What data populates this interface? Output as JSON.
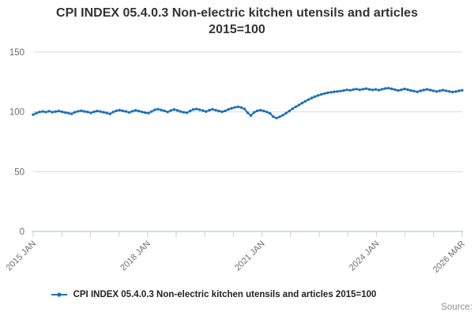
{
  "header": {
    "title_line1": "CPI INDEX 05.4.0.3 Non-electric kitchen utensils and articles",
    "title_line2": "2015=100"
  },
  "legend": {
    "label": "CPI INDEX 05.4.0.3 Non-electric kitchen utensils and articles 2015=100",
    "marker": "line-with-dot-icon"
  },
  "footer": {
    "source_label": "Source:"
  },
  "colors": {
    "series": "#1d70b8",
    "gridline": "#d9d9d9",
    "axis": "#c4cfda",
    "tick_label": "#6e6e6e",
    "title": "#333333",
    "legend_text": "#222222",
    "source_text": "#8e8e8e"
  },
  "chart_data": {
    "type": "line",
    "title": "CPI INDEX 05.4.0.3 Non-electric kitchen utensils and articles 2015=100",
    "xlabel": "",
    "ylabel": "",
    "ylim": [
      0,
      150
    ],
    "y_ticks": [
      0,
      50,
      100,
      150
    ],
    "grid": "horizontal",
    "legend_position": "bottom",
    "x_minor_tick_count": 16,
    "x_tick_labels": [
      {
        "pos": 0,
        "label": "2015 JAN"
      },
      {
        "pos": 4,
        "label": "2018 JAN"
      },
      {
        "pos": 8,
        "label": "2021 JAN"
      },
      {
        "pos": 12,
        "label": "2024 JAN"
      },
      {
        "pos": 15,
        "label": "2026 MAR"
      }
    ],
    "x_start": "2015 JAN",
    "x_end": "2026 MAR",
    "frequency": "monthly",
    "series": [
      {
        "name": "CPI INDEX 05.4.0.3 Non-electric kitchen utensils and articles 2015=100",
        "values": [
          97.7,
          99.0,
          100.0,
          100.4,
          99.9,
          100.6,
          99.8,
          100.3,
          100.7,
          100.1,
          99.5,
          99.0,
          98.4,
          99.7,
          100.5,
          101.0,
          100.4,
          100.0,
          99.2,
          100.1,
          100.8,
          100.3,
          99.7,
          99.1,
          98.3,
          99.9,
          101.0,
          101.5,
          100.9,
          100.4,
          99.6,
          100.6,
          101.3,
          100.7,
          100.0,
          99.4,
          99.0,
          100.4,
          101.8,
          102.3,
          101.6,
          100.9,
          99.9,
          101.2,
          102.0,
          101.3,
          100.4,
          99.7,
          99.3,
          100.8,
          102.0,
          102.5,
          101.8,
          101.1,
          100.3,
          101.4,
          102.2,
          101.5,
          100.7,
          100.1,
          100.9,
          102.1,
          103.0,
          103.8,
          104.3,
          103.7,
          102.5,
          99.3,
          97.0,
          99.6,
          101.0,
          101.5,
          100.8,
          100.0,
          98.7,
          96.0,
          94.9,
          95.9,
          97.3,
          99.0,
          100.8,
          102.6,
          104.3,
          105.8,
          107.4,
          108.9,
          110.3,
          111.6,
          112.8,
          113.8,
          114.7,
          115.4,
          116.0,
          116.4,
          116.8,
          117.1,
          117.4,
          117.9,
          118.4,
          118.1,
          118.7,
          119.1,
          118.5,
          119.0,
          119.5,
          118.9,
          118.4,
          118.8,
          118.2,
          119.0,
          119.6,
          119.9,
          119.3,
          118.7,
          117.9,
          118.5,
          119.2,
          118.6,
          117.9,
          117.4,
          116.8,
          117.6,
          118.3,
          118.9,
          118.3,
          117.7,
          117.0,
          117.6,
          118.2,
          117.7,
          117.1,
          116.6,
          117.0,
          117.6,
          118.1
        ]
      }
    ]
  }
}
